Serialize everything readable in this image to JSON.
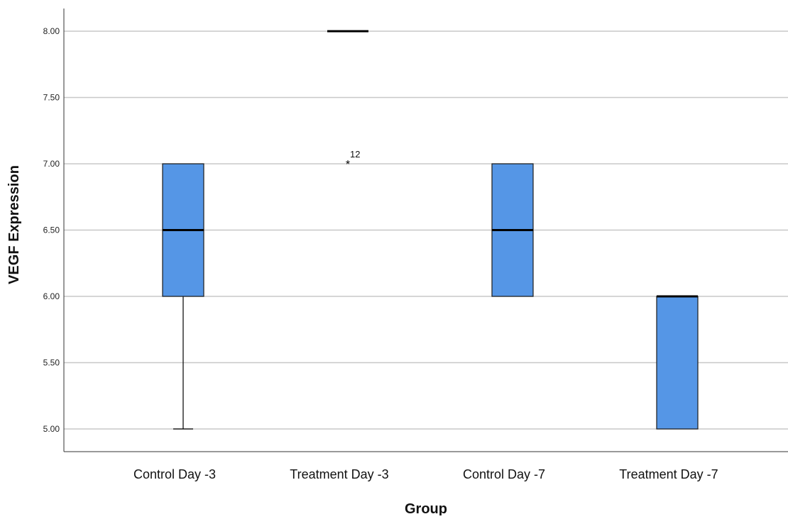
{
  "chart_data": {
    "type": "boxplot",
    "title": "",
    "xlabel": "Group",
    "ylabel": "VEGF Expression",
    "ylim": [
      4.84,
      8.09
    ],
    "yticks": [
      5.0,
      5.5,
      6.0,
      6.5,
      7.0,
      7.5,
      8.0
    ],
    "ytick_labels": [
      "5.00",
      "5.50",
      "6.00",
      "6.50",
      "7.00",
      "7.50",
      "8.00"
    ],
    "grid": "horizontal",
    "box_color": "#5596e6",
    "categories": [
      "Control Day -3",
      "Treatment Day -3",
      "Control Day -7",
      "Treatment Day -7"
    ],
    "boxes": [
      {
        "category": "Control Day -3",
        "whisker_low": 5.0,
        "q1": 6.0,
        "median": 6.5,
        "q3": 7.0,
        "whisker_high": 7.0,
        "outliers": []
      },
      {
        "category": "Treatment Day -3",
        "whisker_low": 8.0,
        "q1": 8.0,
        "median": 8.0,
        "q3": 8.0,
        "whisker_high": 8.0,
        "outliers": [
          {
            "value": 7.0,
            "label": "12",
            "marker": "*"
          }
        ]
      },
      {
        "category": "Control Day -7",
        "whisker_low": 6.0,
        "q1": 6.0,
        "median": 6.5,
        "q3": 7.0,
        "whisker_high": 7.0,
        "outliers": []
      },
      {
        "category": "Treatment Day -7",
        "whisker_low": 5.0,
        "q1": 5.0,
        "median": 6.0,
        "q3": 6.0,
        "whisker_high": 6.0,
        "outliers": []
      }
    ]
  }
}
